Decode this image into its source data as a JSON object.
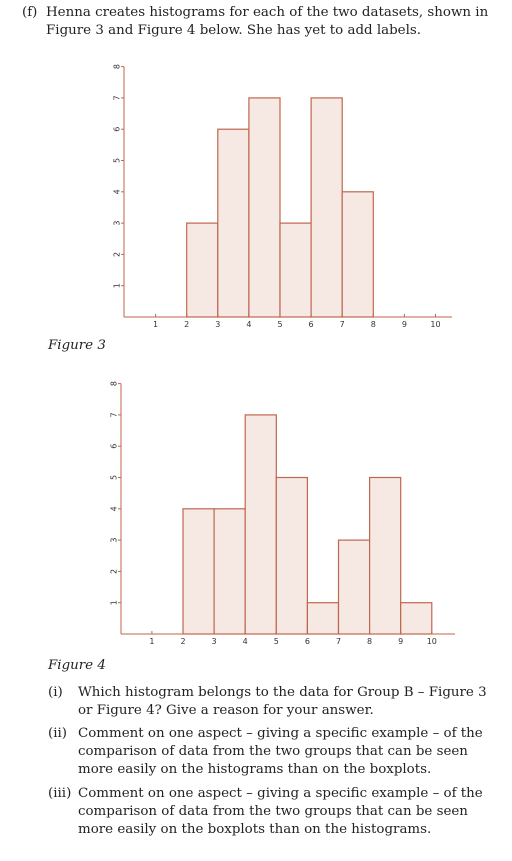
{
  "intro": {
    "label": "(f)",
    "text": "Henna creates histograms for each of the two datasets, shown in Figure 3 and Figure 4 below. She has yet to add labels."
  },
  "figures": [
    {
      "caption": "Figure 3"
    },
    {
      "caption": "Figure 4"
    }
  ],
  "questions": [
    {
      "label": "(i)",
      "text": "Which histogram belongs to the data for Group B – Figure 3 or Figure 4? Give a reason for your answer."
    },
    {
      "label": "(ii)",
      "text": "Comment on one aspect – giving a specific example – of the comparison of data from the two groups that can be seen more easily on the histograms than on the boxplots."
    },
    {
      "label": "(iii)",
      "text": "Comment on one aspect – giving a specific example – of the comparison of data from the two groups that can be seen more easily on the boxplots than on the histograms."
    }
  ],
  "colors": {
    "bar_fill": "#f6e8e3",
    "bar_stroke": "#c0664e",
    "axis": "#c0664e"
  },
  "chart_data": [
    {
      "type": "bar",
      "x_ticks": [
        "1",
        "2",
        "3",
        "4",
        "5",
        "6",
        "7",
        "8",
        "9",
        "10"
      ],
      "y_ticks": [
        "1",
        "2",
        "3",
        "4",
        "5",
        "6",
        "7",
        "8"
      ],
      "bins": [
        [
          2,
          3
        ],
        [
          3,
          4
        ],
        [
          4,
          5
        ],
        [
          5,
          6
        ],
        [
          6,
          7
        ],
        [
          7,
          8
        ]
      ],
      "values": [
        3,
        6,
        7,
        3,
        7,
        4
      ],
      "xlim": [
        0,
        10.5
      ],
      "ylim": [
        0,
        8
      ]
    },
    {
      "type": "bar",
      "x_ticks": [
        "1",
        "2",
        "3",
        "4",
        "5",
        "6",
        "7",
        "8",
        "9",
        "10"
      ],
      "y_ticks": [
        "1",
        "2",
        "3",
        "4",
        "5",
        "6",
        "7",
        "8"
      ],
      "bins": [
        [
          2,
          3
        ],
        [
          3,
          4
        ],
        [
          4,
          5
        ],
        [
          5,
          6
        ],
        [
          6,
          7
        ],
        [
          7,
          8
        ],
        [
          8,
          9
        ],
        [
          9,
          10
        ]
      ],
      "values": [
        4,
        4,
        7,
        5,
        1,
        3,
        5,
        1
      ],
      "xlim": [
        0,
        10.5
      ],
      "ylim": [
        0,
        8
      ]
    }
  ]
}
